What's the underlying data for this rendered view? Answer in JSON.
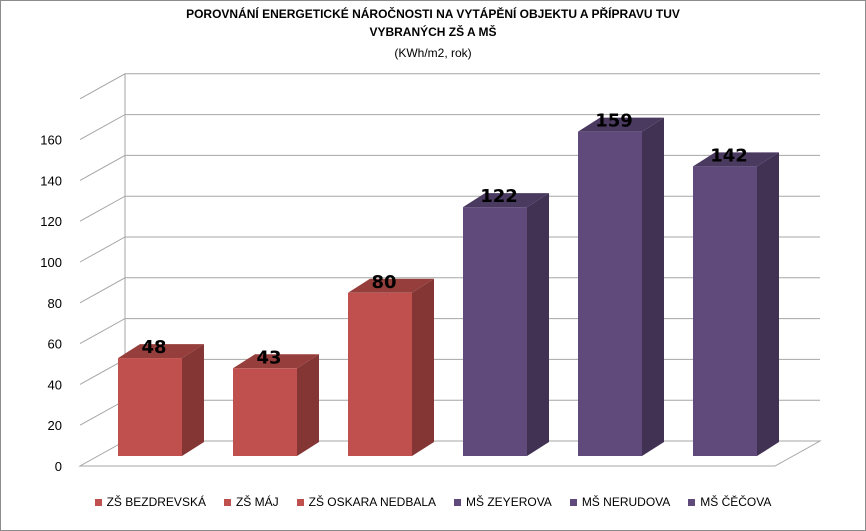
{
  "chart_data": {
    "type": "bar",
    "title": "POROVNÁNÍ ENERGETICKÉ NÁROČNOSTI  NA VYTÁPĚNÍ OBJEKTU A PŘÍPRAVU TUV",
    "title_line2": "VYBRANÝCH ZŠ A MŠ",
    "subtitle": "(KWh/m2, rok)",
    "categories": [
      "ZŠ BEZDREVSKÁ",
      "ZŠ MÁJ",
      "ZŠ OSKARA NEDBALA",
      "MŠ ZEYEROVA",
      "MŠ NERUDOVA",
      "MŠ ČĚČOVA"
    ],
    "values": [
      48,
      43,
      80,
      122,
      159,
      142
    ],
    "data_labels": [
      "48",
      "43",
      "80",
      "122",
      "159",
      "142"
    ],
    "colors": [
      "#c0504d",
      "#c0504d",
      "#c0504d",
      "#604a7b",
      "#604a7b",
      "#604a7b"
    ],
    "y_ticks": [
      "0",
      "20",
      "40",
      "60",
      "80",
      "100",
      "120",
      "140",
      "160"
    ],
    "ylim": [
      0,
      180
    ],
    "grid": true,
    "legend_position": "bottom",
    "style": "3d-column"
  }
}
